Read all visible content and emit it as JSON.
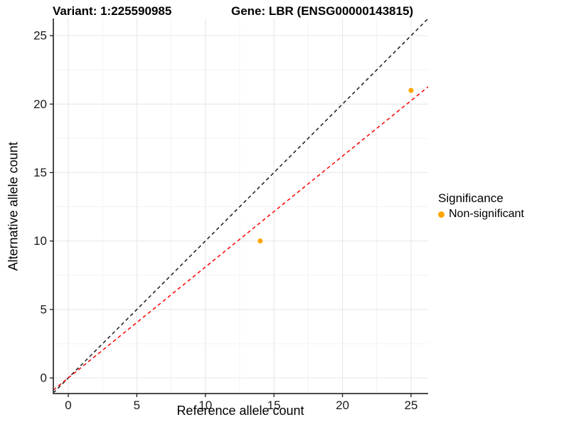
{
  "titles": {
    "variant": "Variant: 1:225590985",
    "gene": "Gene: LBR (ENSG00000143815)"
  },
  "chart_data": {
    "type": "scatter",
    "xlabel": "Reference allele count",
    "ylabel": "Alternative allele count",
    "xlim": [
      -1.09,
      26.25
    ],
    "ylim": [
      -1.14,
      26.25
    ],
    "xticks": [
      0,
      5,
      10,
      15,
      20,
      25
    ],
    "yticks": [
      0,
      5,
      10,
      15,
      20,
      25
    ],
    "xminor": [
      2.5,
      7.5,
      12.5,
      17.5,
      22.5
    ],
    "yminor": [
      2.5,
      7.5,
      12.5,
      17.5,
      22.5
    ],
    "grid": "on",
    "series": [
      {
        "name": "Non-significant",
        "color": "#FFA500",
        "points": [
          {
            "x": 14,
            "y": 10
          },
          {
            "x": 25,
            "y": 21
          }
        ]
      }
    ],
    "lines": [
      {
        "name": "identity-line",
        "slope": 1,
        "intercept": 0,
        "color": "#1a1a1a",
        "dash": "5 4"
      },
      {
        "name": "fit-line",
        "slope": 0.81,
        "intercept": 0,
        "color": "#ff0000",
        "dash": "5 4"
      }
    ],
    "legend": {
      "title": "Significance",
      "position": "right",
      "items": [
        {
          "label": "Non-significant",
          "color": "#FFA500"
        }
      ]
    }
  },
  "colors": {
    "background": "#ffffff",
    "grid_major": "#e9e9e9",
    "grid_minor": "#f3f3f3",
    "axis_line": "#4a4a4a",
    "tick_text": "#1a1a1a",
    "point": "#FFA500"
  }
}
